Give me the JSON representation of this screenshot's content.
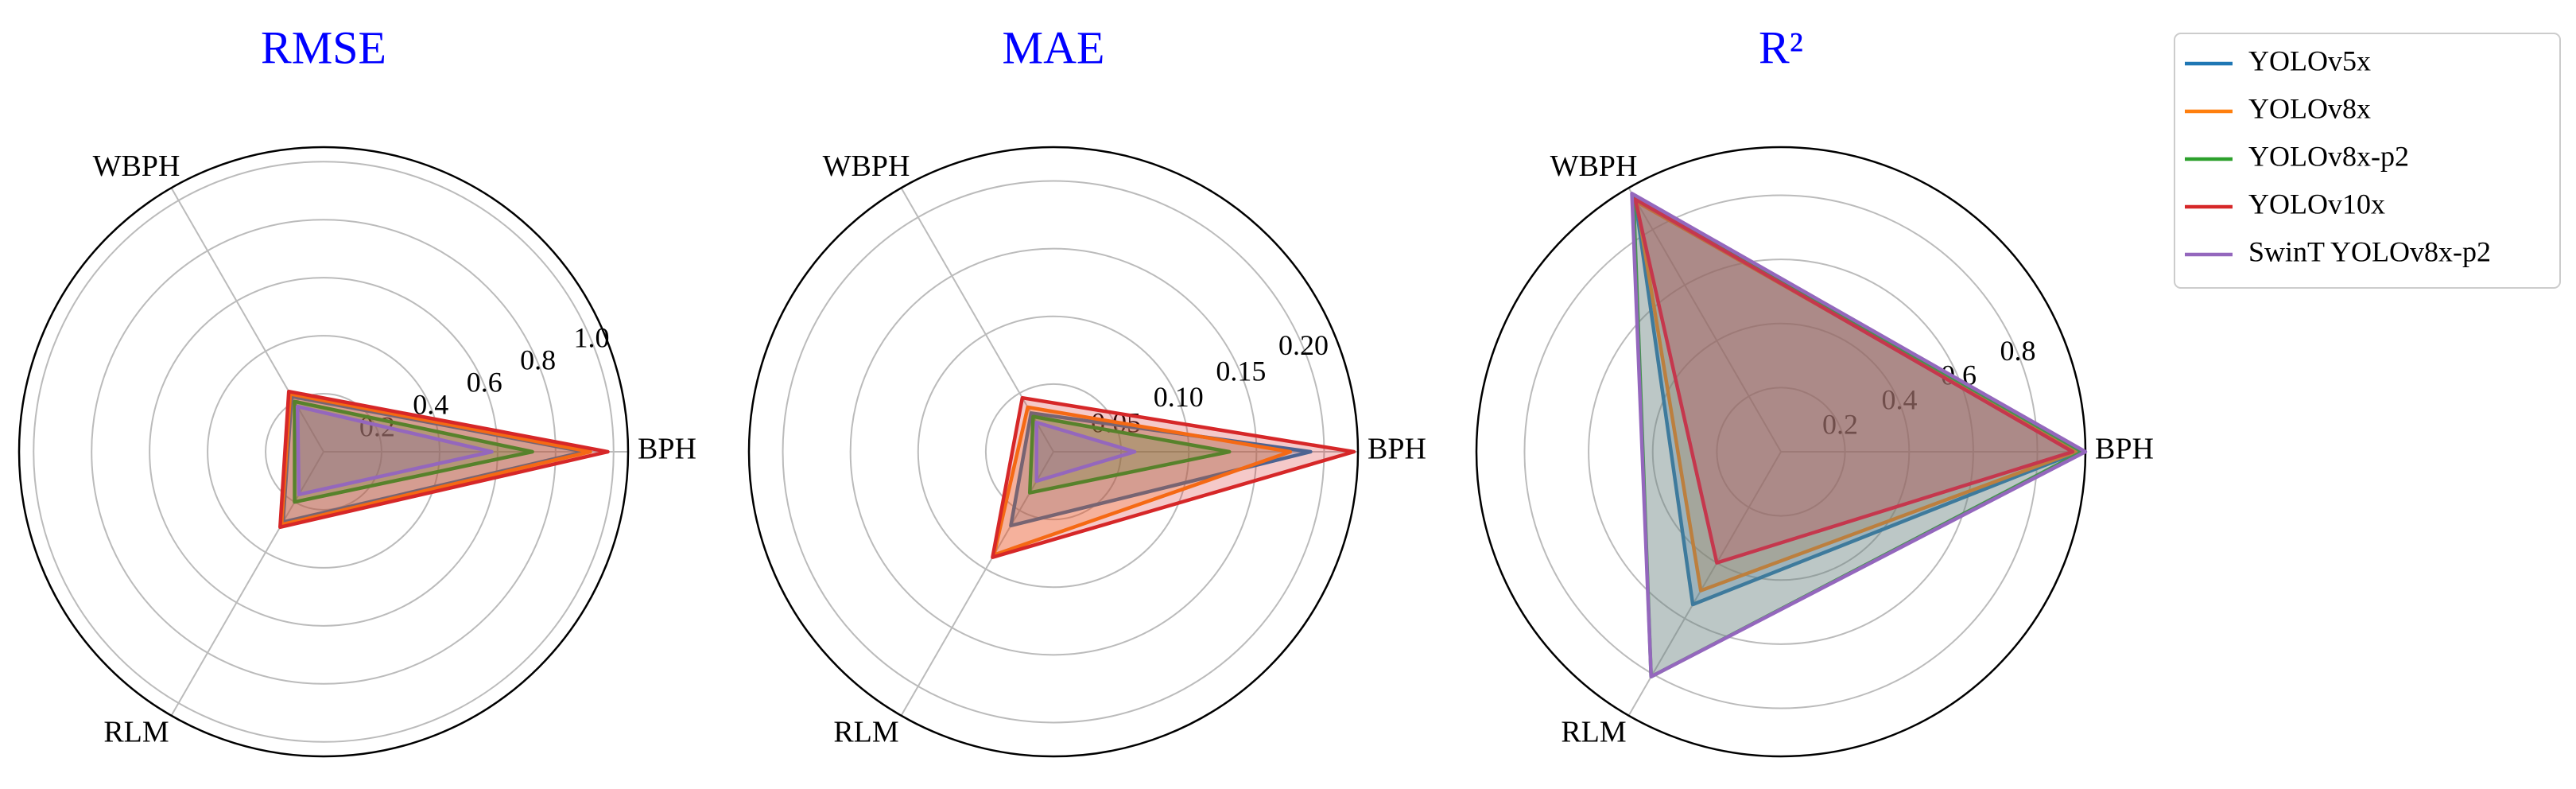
{
  "chart_data": [
    {
      "type": "radar",
      "title": "RMSE",
      "categories": [
        "BPH",
        "WBPH",
        "RLM"
      ],
      "ylim": [
        0,
        1.05
      ],
      "yticks": [
        0.2,
        0.4,
        0.6,
        0.8,
        {
          "value": 1,
          "label": "1.0"
        }
      ],
      "grid": true,
      "series": [
        {
          "name": "YOLOv5x",
          "color": "#1f77b4",
          "values": [
            0.9,
            0.22,
            0.28
          ]
        },
        {
          "name": "YOLOv8x",
          "color": "#ff7f0e",
          "values": [
            0.92,
            0.23,
            0.29
          ]
        },
        {
          "name": "YOLOv8x-p2",
          "color": "#2ca02c",
          "values": [
            0.72,
            0.2,
            0.2
          ]
        },
        {
          "name": "YOLOv10x",
          "color": "#d62728",
          "values": [
            0.98,
            0.24,
            0.3
          ]
        },
        {
          "name": "SwinT YOLOv8x-p2",
          "color": "#9467bd",
          "values": [
            0.58,
            0.18,
            0.17
          ]
        }
      ]
    },
    {
      "type": "radar",
      "title": "MAE",
      "categories": [
        "BPH",
        "WBPH",
        "RLM"
      ],
      "ylim": [
        0,
        0.225
      ],
      "yticks": [
        0.05,
        {
          "value": 0.1,
          "label": "0.10"
        },
        0.15,
        {
          "value": 0.2,
          "label": "0.20"
        }
      ],
      "grid": true,
      "series": [
        {
          "name": "YOLOv5x",
          "color": "#1f77b4",
          "values": [
            0.19,
            0.033,
            0.063
          ]
        },
        {
          "name": "YOLOv8x",
          "color": "#ff7f0e",
          "values": [
            0.175,
            0.038,
            0.088
          ]
        },
        {
          "name": "YOLOv8x-p2",
          "color": "#2ca02c",
          "values": [
            0.13,
            0.03,
            0.035
          ]
        },
        {
          "name": "YOLOv10x",
          "color": "#d62728",
          "values": [
            0.222,
            0.046,
            0.09
          ]
        },
        {
          "name": "SwinT YOLOv8x-p2",
          "color": "#9467bd",
          "values": [
            0.06,
            0.025,
            0.025
          ]
        }
      ]
    },
    {
      "type": "radar",
      "title": "R²",
      "categories": [
        "BPH",
        "WBPH",
        "RLM"
      ],
      "ylim": [
        0,
        0.95
      ],
      "yticks": [
        0.2,
        0.4,
        0.6,
        0.8
      ],
      "grid": true,
      "series": [
        {
          "name": "YOLOv5x",
          "color": "#1f77b4",
          "values": [
            0.93,
            0.91,
            0.55
          ]
        },
        {
          "name": "YOLOv8x",
          "color": "#ff7f0e",
          "values": [
            0.92,
            0.9,
            0.5
          ]
        },
        {
          "name": "YOLOv8x-p2",
          "color": "#2ca02c",
          "values": [
            0.94,
            0.92,
            0.81
          ]
        },
        {
          "name": "YOLOv10x",
          "color": "#d62728",
          "values": [
            0.91,
            0.91,
            0.4
          ]
        },
        {
          "name": "SwinT YOLOv8x-p2",
          "color": "#9467bd",
          "values": [
            0.95,
            0.93,
            0.81
          ]
        }
      ]
    }
  ]
}
